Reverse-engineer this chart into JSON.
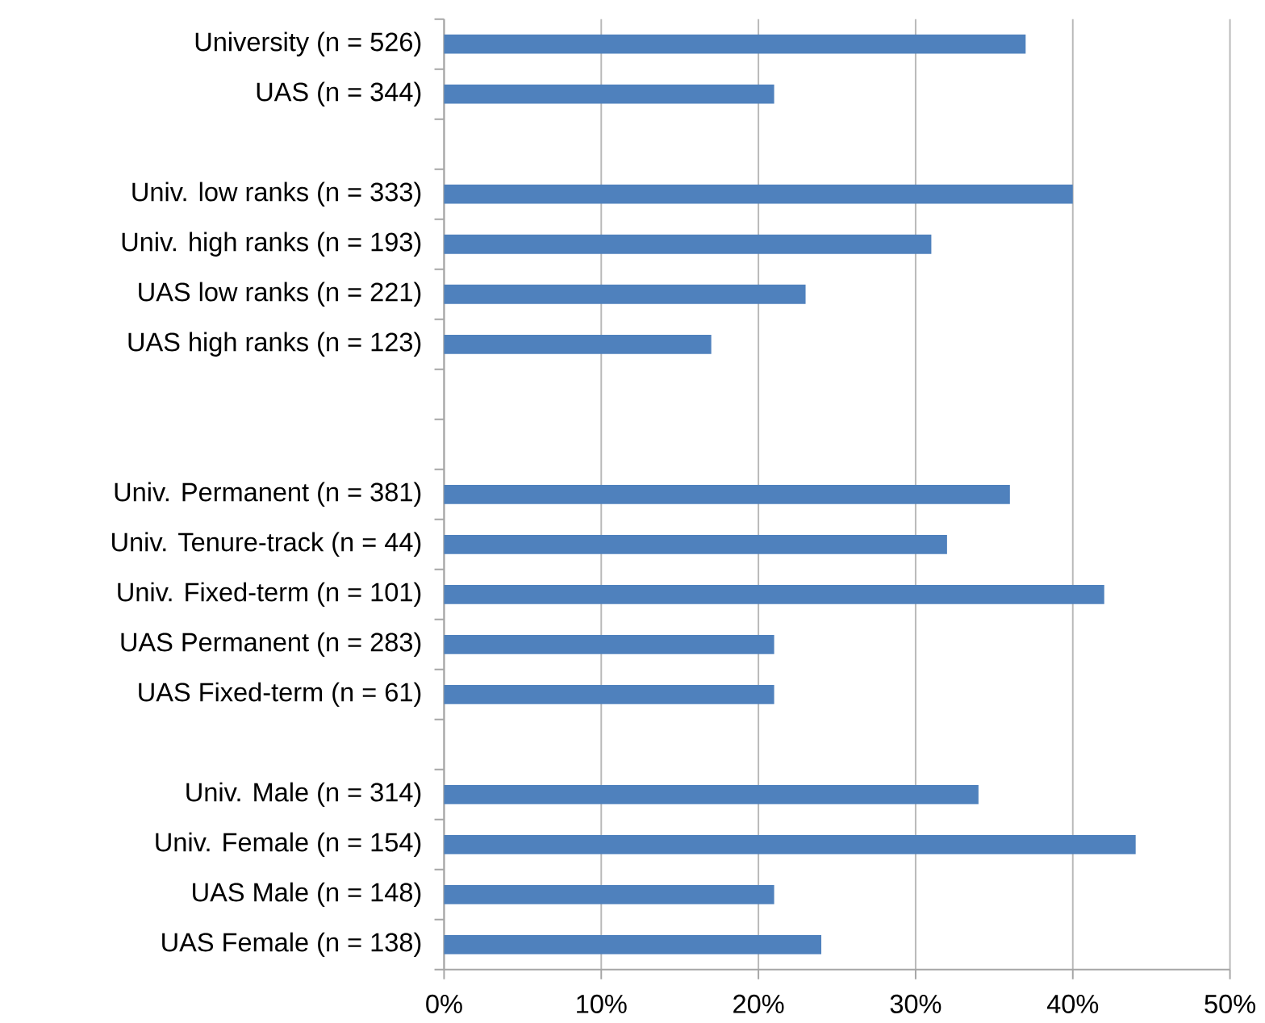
{
  "chart_data": {
    "type": "bar",
    "orientation": "horizontal",
    "categories": [
      "University (n = 526)",
      "UAS (n = 344)",
      null,
      "Univ. low ranks (n = 333)",
      "Univ. high ranks (n = 193)",
      "UAS low ranks (n = 221)",
      "UAS high ranks (n = 123)",
      null,
      null,
      "Univ. Permanent (n = 381)",
      "Univ. Tenure-track (n = 44)",
      "Univ. Fixed-term (n = 101)",
      "UAS Permanent (n = 283)",
      "UAS Fixed-term (n = 61)",
      null,
      "Univ. Male (n = 314)",
      "Univ. Female (n = 154)",
      "UAS Male (n = 148)",
      "UAS Female (n = 138)"
    ],
    "values": [
      37,
      21,
      null,
      40,
      31,
      23,
      17,
      null,
      null,
      36,
      32,
      42,
      21,
      21,
      null,
      34,
      44,
      21,
      24
    ],
    "color": "#4f81bd",
    "xlim": [
      0,
      50
    ],
    "xticks": [
      {
        "value": 0,
        "label": "0%"
      },
      {
        "value": 10,
        "label": "10%"
      },
      {
        "value": 20,
        "label": "20%"
      },
      {
        "value": 30,
        "label": "30%"
      },
      {
        "value": 40,
        "label": "40%"
      },
      {
        "value": 50,
        "label": "50%"
      }
    ],
    "grid": "x"
  }
}
